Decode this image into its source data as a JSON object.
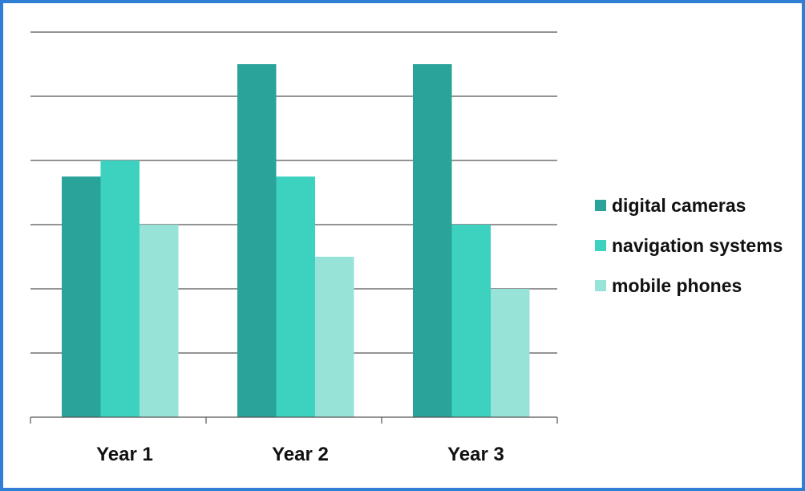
{
  "chart_data": {
    "type": "bar",
    "title": "",
    "xlabel": "",
    "ylabel": "",
    "categories": [
      "Year 1",
      "Year 2",
      "Year 3"
    ],
    "ylim": [
      0,
      6
    ],
    "grid": true,
    "legend_position": "right",
    "series": [
      {
        "name": "digital cameras",
        "color": "#2aa39a",
        "values": [
          3.75,
          5.5,
          5.5
        ]
      },
      {
        "name": "navigation systems",
        "color": "#3dd2c0",
        "values": [
          4.0,
          3.75,
          3.0
        ]
      },
      {
        "name": "mobile phones",
        "color": "#97e3d8",
        "values": [
          3.0,
          2.5,
          2.0
        ]
      }
    ]
  }
}
